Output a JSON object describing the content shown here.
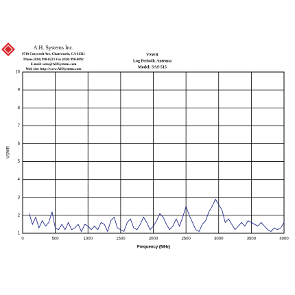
{
  "header": {
    "company": "A.H. Systems Inc.",
    "address": "9710 Cozycroft Ave. Chatsworth, CA 91311",
    "phone": "Phone (818) 998-0223 Fax (818) 998-6892",
    "email": "E-mail: sales@AHSystems.com",
    "web": "Web site: http://www.AHSystems.com"
  },
  "chart_data": {
    "type": "line",
    "title": "VSWR",
    "subtitle": "Log Periodic Antenna",
    "model": "Model: SAS-515",
    "x_label": "Frequency (MHz)",
    "y_label": "VSWR",
    "x": [
      100,
      150,
      200,
      250,
      300,
      350,
      400,
      450,
      500,
      550,
      600,
      650,
      700,
      750,
      800,
      850,
      900,
      950,
      1000,
      1050,
      1100,
      1150,
      1200,
      1250,
      1300,
      1350,
      1400,
      1450,
      1500,
      1550,
      1600,
      1650,
      1700,
      1750,
      1800,
      1850,
      1900,
      1950,
      2000,
      2050,
      2100,
      2150,
      2200,
      2250,
      2300,
      2350,
      2400,
      2450,
      2500,
      2550,
      2600,
      2650,
      2700,
      2750,
      2800,
      2850,
      2900,
      2950,
      3000,
      3050,
      3100,
      3150,
      3200,
      3250,
      3300,
      3350,
      3400,
      3450,
      3500,
      3550,
      3600,
      3650,
      3700,
      3750,
      3800,
      3850,
      3900,
      3950,
      4000
    ],
    "values": [
      2.1,
      1.5,
      1.9,
      1.3,
      1.7,
      1.4,
      1.6,
      2.2,
      1.3,
      1.2,
      1.5,
      1.2,
      1.6,
      1.2,
      1.3,
      1.5,
      1.1,
      1.5,
      1.4,
      1.2,
      1.4,
      1.2,
      1.6,
      1.5,
      1.1,
      1.7,
      1.9,
      1.3,
      1.2,
      1.1,
      1.6,
      1.8,
      1.3,
      1.2,
      1.5,
      1.9,
      1.6,
      1.2,
      1.4,
      1.7,
      2.1,
      1.9,
      1.5,
      1.2,
      1.4,
      1.8,
      1.4,
      1.9,
      2.5,
      2.0,
      1.6,
      1.2,
      1.1,
      1.5,
      1.7,
      2.2,
      2.5,
      2.9,
      2.6,
      2.3,
      1.6,
      1.8,
      1.5,
      1.2,
      1.4,
      1.6,
      1.4,
      1.7,
      1.6,
      1.5,
      1.4,
      1.6,
      1.4,
      1.2,
      1.1,
      1.3,
      1.2,
      1.3,
      1.6
    ],
    "color": "#1f2a8c",
    "xlim": [
      0,
      4000
    ],
    "xticks": [
      0,
      500,
      1000,
      1500,
      2000,
      2500,
      3000,
      3500,
      4000
    ],
    "ylim": [
      1,
      10
    ],
    "yticks": [
      1,
      2,
      3,
      4,
      5,
      6,
      7,
      8,
      9,
      10
    ],
    "grid": true
  }
}
